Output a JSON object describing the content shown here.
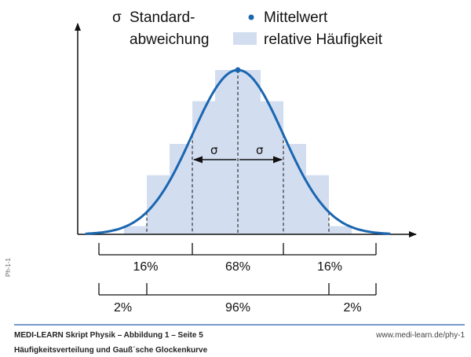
{
  "legend": {
    "sigma_symbol": "σ",
    "sigma_line1": "Standard-",
    "sigma_line2": "abweichung",
    "mean_label": "Mittelwert",
    "freq_label": "relative Häufigkeit"
  },
  "chart_data": {
    "type": "bar",
    "description_labels": [
      "σ",
      "σ"
    ],
    "histogram_relative_heights": [
      0.05,
      0.36,
      0.55,
      0.81,
      1.0,
      0.81,
      0.55,
      0.36,
      0.05
    ],
    "histogram_bins_in_sigma": [
      [
        -2.5,
        -2
      ],
      [
        -2,
        -1.5
      ],
      [
        -1.5,
        -1
      ],
      [
        -1,
        -0.5
      ],
      [
        -0.5,
        0.5
      ],
      [
        0.5,
        1
      ],
      [
        1,
        1.5
      ],
      [
        1.5,
        2
      ],
      [
        2,
        2.5
      ]
    ],
    "curve": "gaussian",
    "mean": 0,
    "sigma": 1,
    "sigma_bracket_labels": [
      "16%",
      "68%",
      "16%"
    ],
    "sigma_bracket_bounds": [
      -3,
      -1,
      1,
      3
    ],
    "two_sigma_bracket_labels": [
      "2%",
      "96%",
      "2%"
    ],
    "two_sigma_bracket_bounds": [
      -3,
      -2,
      2,
      3
    ],
    "colors": {
      "curve": "#1a66b0",
      "bars": "#d3ddf0",
      "footer_line": "#4a78b8"
    }
  },
  "side_label": "Ph-1-1",
  "footer": {
    "title": "MEDI-LEARN Skript Physik – Abbildung 1 – Seite 5",
    "subtitle": "Häufigkeitsverteilung und Gauß´sche Glockenkurve",
    "url": "www.medi-learn.de/phy-1"
  }
}
